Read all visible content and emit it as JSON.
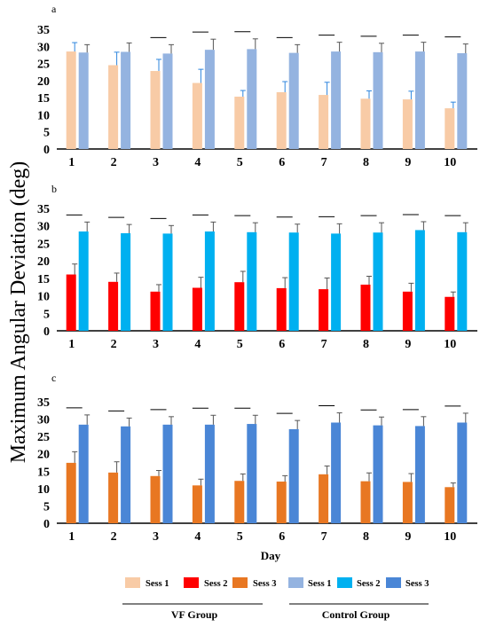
{
  "figure": {
    "ylabel": "Maximum Angular Deviation (deg)",
    "xlabel": "Day",
    "legend": {
      "entries": [
        "Sess 1",
        "Sess 2",
        "Sess 3",
        "Sess 1",
        "Sess 2",
        "Sess 3"
      ],
      "vf_group": "VF Group",
      "control_group": "Control Group"
    },
    "colors": {
      "vf_sess1": "#F8CBA6",
      "vf_sess2": "#FF0000",
      "vf_sess3": "#E87722",
      "ctrl_sess1": "#94B3E0",
      "ctrl_sess2": "#00B0F0",
      "ctrl_sess3": "#4A86D6",
      "error_vf_sess1": "#2E86DE",
      "error_default": "#555555"
    }
  },
  "chart_data": [
    {
      "type": "bar",
      "panel_label": "a",
      "categories": [
        "1",
        "2",
        "3",
        "4",
        "5",
        "6",
        "7",
        "8",
        "9",
        "10"
      ],
      "ylim": [
        0,
        35
      ],
      "yticks": [
        0,
        5,
        10,
        15,
        20,
        25,
        30,
        35
      ],
      "significance_markers": [
        3,
        4,
        5,
        6,
        7,
        8,
        9,
        10
      ],
      "series": [
        {
          "name": "Sess 1",
          "group": "VF Group",
          "values": [
            28.5,
            24.5,
            22.8,
            19.3,
            15.3,
            16.6,
            15.8,
            14.7,
            14.5,
            11.9
          ],
          "errors": [
            2.6,
            3.8,
            3.4,
            4.0,
            1.8,
            3.1,
            3.7,
            2.3,
            2.4,
            1.8
          ]
        },
        {
          "name": "Sess 1",
          "group": "Control Group",
          "values": [
            28.2,
            28.4,
            27.9,
            29.0,
            29.2,
            28.1,
            28.5,
            28.3,
            28.5,
            28.0
          ],
          "errors": [
            2.3,
            2.6,
            2.6,
            3.1,
            3.0,
            2.4,
            2.7,
            2.6,
            2.7,
            2.7
          ]
        }
      ]
    },
    {
      "type": "bar",
      "panel_label": "b",
      "categories": [
        "1",
        "2",
        "3",
        "4",
        "5",
        "6",
        "7",
        "8",
        "9",
        "10"
      ],
      "ylim": [
        0,
        35
      ],
      "yticks": [
        0,
        5,
        10,
        15,
        20,
        25,
        30,
        35
      ],
      "significance_markers": [
        1,
        2,
        3,
        4,
        5,
        6,
        7,
        8,
        9,
        10
      ],
      "series": [
        {
          "name": "Sess 2",
          "group": "VF Group",
          "values": [
            16.1,
            14.0,
            11.2,
            12.3,
            13.9,
            12.2,
            11.9,
            13.2,
            11.2,
            9.7
          ],
          "errors": [
            3.0,
            2.5,
            2.0,
            3.0,
            3.1,
            3.0,
            3.2,
            2.4,
            2.4,
            1.4
          ]
        },
        {
          "name": "Sess 2",
          "group": "Control Group",
          "values": [
            28.4,
            27.9,
            27.8,
            28.4,
            28.2,
            28.1,
            27.8,
            28.1,
            28.8,
            28.2
          ],
          "errors": [
            2.7,
            2.5,
            2.3,
            2.7,
            2.7,
            2.4,
            2.8,
            2.8,
            2.4,
            2.7
          ]
        }
      ]
    },
    {
      "type": "bar",
      "panel_label": "c",
      "categories": [
        "1",
        "2",
        "3",
        "4",
        "5",
        "6",
        "7",
        "8",
        "9",
        "10"
      ],
      "ylim": [
        0,
        35
      ],
      "yticks": [
        0,
        5,
        10,
        15,
        20,
        25,
        30,
        35
      ],
      "significance_markers": [
        1,
        2,
        3,
        4,
        5,
        6,
        7,
        8,
        9,
        10
      ],
      "series": [
        {
          "name": "Sess 3",
          "group": "VF Group",
          "values": [
            17.4,
            14.6,
            13.6,
            10.9,
            12.2,
            12.0,
            14.1,
            12.1,
            11.9,
            10.4
          ],
          "errors": [
            3.2,
            3.1,
            1.6,
            1.8,
            2.0,
            1.7,
            2.4,
            2.4,
            2.4,
            1.2
          ]
        },
        {
          "name": "Sess 3",
          "group": "Control Group",
          "values": [
            28.4,
            27.9,
            28.4,
            28.4,
            28.6,
            27.1,
            29.0,
            28.2,
            28.0,
            29.0
          ],
          "errors": [
            2.8,
            2.4,
            2.3,
            2.7,
            2.5,
            2.5,
            2.8,
            2.4,
            2.7,
            2.7
          ]
        }
      ]
    }
  ]
}
